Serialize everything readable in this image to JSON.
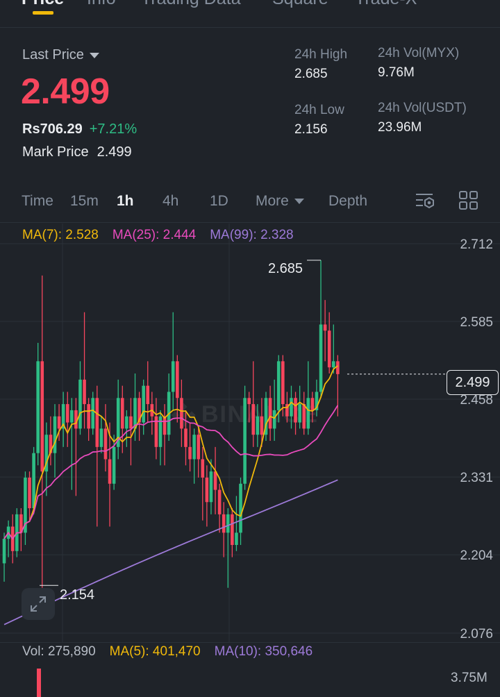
{
  "tabs": [
    {
      "label": "Price",
      "active": true
    },
    {
      "label": "Info"
    },
    {
      "label": "Trading Data"
    },
    {
      "label": "Square"
    },
    {
      "label": "Trade-X"
    }
  ],
  "header": {
    "last_price_label": "Last Price",
    "price": "2.499",
    "price_local": "Rs706.29",
    "change_pct": "+7.21%",
    "mark_label": "Mark Price",
    "mark_value": "2.499",
    "high_label": "24h High",
    "high_value": "2.685",
    "low_label": "24h Low",
    "low_value": "2.156",
    "vol_base_label": "24h Vol(MYX)",
    "vol_base_value": "9.76M",
    "vol_quote_label": "24h Vol(USDT)",
    "vol_quote_value": "23.96M"
  },
  "intervals": {
    "time": "Time",
    "m15": "15m",
    "h1": "1h",
    "h4": "4h",
    "d1": "1D",
    "more": "More",
    "depth": "Depth",
    "active": "1h"
  },
  "icons": {
    "settings": "chart-settings-icon",
    "layout": "grid-layout-icon",
    "expand": "expand-icon"
  },
  "colors": {
    "up": "#2ebd85",
    "down": "#f6465d",
    "ma7": "#f0b90b",
    "ma25": "#e94bbd",
    "ma99": "#9d7ad8",
    "accent": "#f0b90b"
  },
  "ma_legend": {
    "ma7": "MA(7): 2.528",
    "ma25": "MA(25): 2.444",
    "ma99": "MA(99): 2.328"
  },
  "chart_data": {
    "type": "candlestick",
    "y_ticks": [
      "2.712",
      "2.585",
      "2.458",
      "2.331",
      "2.204",
      "2.076"
    ],
    "ylim": [
      2.076,
      2.712
    ],
    "high_marker": "2.685",
    "low_marker": "2.154",
    "current_price": "2.499",
    "candles": [
      [
        2.19,
        2.23,
        2.16,
        2.24
      ],
      [
        2.23,
        2.25,
        2.2,
        2.26
      ],
      [
        2.25,
        2.21,
        2.19,
        2.27
      ],
      [
        2.21,
        2.27,
        2.2,
        2.28
      ],
      [
        2.27,
        2.24,
        2.21,
        2.28
      ],
      [
        2.24,
        2.33,
        2.22,
        2.34
      ],
      [
        2.33,
        2.28,
        2.26,
        2.34
      ],
      [
        2.28,
        2.37,
        2.27,
        2.38
      ],
      [
        2.37,
        2.52,
        2.35,
        2.55
      ],
      [
        2.52,
        2.34,
        2.15,
        2.66
      ],
      [
        2.34,
        2.4,
        2.3,
        2.42
      ],
      [
        2.4,
        2.37,
        2.35,
        2.43
      ],
      [
        2.37,
        2.43,
        2.33,
        2.45
      ],
      [
        2.43,
        2.41,
        2.39,
        2.45
      ],
      [
        2.41,
        2.45,
        2.38,
        2.47
      ],
      [
        2.45,
        2.42,
        2.38,
        2.47
      ],
      [
        2.42,
        2.44,
        2.31,
        2.46
      ],
      [
        2.44,
        2.41,
        2.3,
        2.46
      ],
      [
        2.41,
        2.49,
        2.4,
        2.52
      ],
      [
        2.49,
        2.45,
        2.41,
        2.6
      ],
      [
        2.45,
        2.41,
        2.39,
        2.46
      ],
      [
        2.41,
        2.46,
        2.4,
        2.47
      ],
      [
        2.46,
        2.38,
        2.25,
        2.48
      ],
      [
        2.38,
        2.41,
        2.37,
        2.43
      ],
      [
        2.41,
        2.36,
        2.34,
        2.45
      ],
      [
        2.36,
        2.32,
        2.25,
        2.42
      ],
      [
        2.32,
        2.38,
        2.31,
        2.4
      ],
      [
        2.38,
        2.46,
        2.36,
        2.49
      ],
      [
        2.46,
        2.41,
        2.37,
        2.48
      ],
      [
        2.41,
        2.43,
        2.38,
        2.44
      ],
      [
        2.43,
        2.41,
        2.35,
        2.46
      ],
      [
        2.41,
        2.46,
        2.39,
        2.5
      ],
      [
        2.46,
        2.42,
        2.39,
        2.47
      ],
      [
        2.42,
        2.48,
        2.4,
        2.49
      ],
      [
        2.48,
        2.45,
        2.42,
        2.52
      ],
      [
        2.45,
        2.43,
        2.4,
        2.47
      ],
      [
        2.43,
        2.38,
        2.36,
        2.46
      ],
      [
        2.38,
        2.43,
        2.35,
        2.44
      ],
      [
        2.43,
        2.4,
        2.35,
        2.45
      ],
      [
        2.4,
        2.47,
        2.39,
        2.5
      ],
      [
        2.47,
        2.52,
        2.44,
        2.6
      ],
      [
        2.52,
        2.46,
        2.42,
        2.53
      ],
      [
        2.46,
        2.41,
        2.38,
        2.49
      ],
      [
        2.41,
        2.38,
        2.35,
        2.44
      ],
      [
        2.38,
        2.36,
        2.34,
        2.42
      ],
      [
        2.36,
        2.4,
        2.32,
        2.41
      ],
      [
        2.4,
        2.36,
        2.33,
        2.41
      ],
      [
        2.36,
        2.33,
        2.26,
        2.38
      ],
      [
        2.33,
        2.29,
        2.25,
        2.35
      ],
      [
        2.29,
        2.34,
        2.27,
        2.36
      ],
      [
        2.34,
        2.31,
        2.27,
        2.38
      ],
      [
        2.31,
        2.27,
        2.24,
        2.32
      ],
      [
        2.27,
        2.24,
        2.2,
        2.29
      ],
      [
        2.24,
        2.27,
        2.15,
        2.28
      ],
      [
        2.27,
        2.22,
        2.2,
        2.28
      ],
      [
        2.22,
        2.24,
        2.21,
        2.3
      ],
      [
        2.24,
        2.32,
        2.22,
        2.33
      ],
      [
        2.32,
        2.46,
        2.31,
        2.48
      ],
      [
        2.46,
        2.45,
        2.42,
        2.47
      ],
      [
        2.45,
        2.4,
        2.38,
        2.52
      ],
      [
        2.4,
        2.43,
        2.38,
        2.45
      ],
      [
        2.43,
        2.4,
        2.38,
        2.46
      ],
      [
        2.4,
        2.46,
        2.39,
        2.47
      ],
      [
        2.46,
        2.41,
        2.39,
        2.48
      ],
      [
        2.41,
        2.44,
        2.39,
        2.49
      ],
      [
        2.44,
        2.52,
        2.42,
        2.53
      ],
      [
        2.52,
        2.45,
        2.43,
        2.53
      ],
      [
        2.45,
        2.43,
        2.42,
        2.47
      ],
      [
        2.43,
        2.46,
        2.41,
        2.48
      ],
      [
        2.46,
        2.42,
        2.4,
        2.47
      ],
      [
        2.42,
        2.45,
        2.41,
        2.48
      ],
      [
        2.45,
        2.41,
        2.4,
        2.47
      ],
      [
        2.41,
        2.46,
        2.4,
        2.52
      ],
      [
        2.46,
        2.44,
        2.42,
        2.47
      ],
      [
        2.44,
        2.47,
        2.43,
        2.49
      ],
      [
        2.47,
        2.58,
        2.46,
        2.685
      ],
      [
        2.58,
        2.57,
        2.52,
        2.62
      ],
      [
        2.57,
        2.51,
        2.5,
        2.6
      ],
      [
        2.51,
        2.52,
        2.5,
        2.58
      ],
      [
        2.52,
        2.499,
        2.43,
        2.53
      ]
    ]
  },
  "volume": {
    "vol_label": "Vol: 275,890",
    "ma5_label": "MA(5): 401,470",
    "ma10_label": "MA(10): 350,646",
    "axis_label": "3.75M"
  },
  "watermark": "BINANCE"
}
